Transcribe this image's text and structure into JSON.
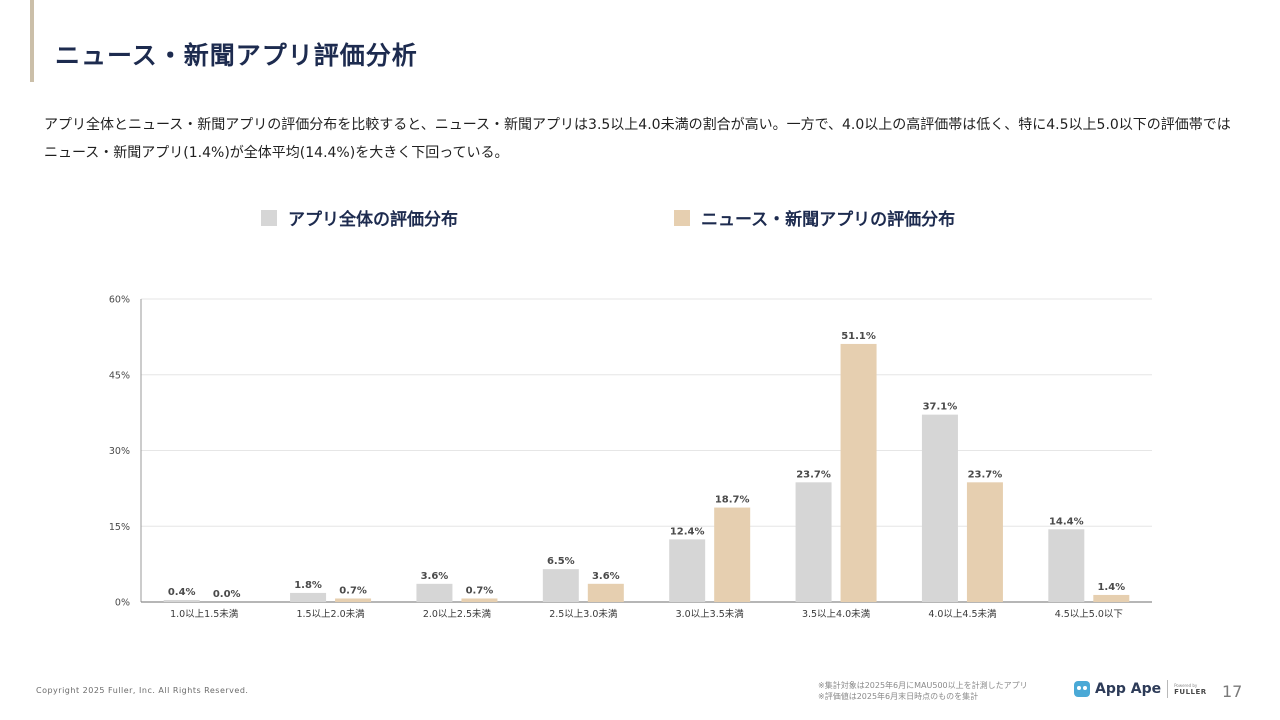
{
  "header": {
    "title": "ニュース・新聞アプリ評価分析",
    "description": "アプリ全体とニュース・新聞アプリの評価分布を比較すると、ニュース・新聞アプリは3.5以上4.0未満の割合が高い。一方で、4.0以上の高評価帯は低く、特に4.5以上5.0以下の評価帯ではニュース・新聞アプリ(1.4%)が全体平均(14.4%)を大きく下回っている。"
  },
  "colors": {
    "all_apps": "#d6d6d6",
    "news_apps": "#e6cfb0",
    "accent": "#cbbfa9",
    "title": "#1d2b4f"
  },
  "chart_data": {
    "type": "bar",
    "categories": [
      "1.0以上1.5未満",
      "1.5以上2.0未満",
      "2.0以上2.5未満",
      "2.5以上3.0未満",
      "3.0以上3.5未満",
      "3.5以上4.0未満",
      "4.0以上4.5未満",
      "4.5以上5.0以下"
    ],
    "series": [
      {
        "name": "アプリ全体の評価分布",
        "values": [
          0.4,
          1.8,
          3.6,
          6.5,
          12.4,
          23.7,
          37.1,
          14.4
        ],
        "labels": [
          "0.4%",
          "1.8%",
          "3.6%",
          "6.5%",
          "12.4%",
          "23.7%",
          "37.1%",
          "14.4%"
        ]
      },
      {
        "name": "ニュース・新聞アプリの評価分布",
        "values": [
          0.0,
          0.7,
          0.7,
          3.6,
          18.7,
          51.1,
          23.7,
          1.4
        ],
        "labels": [
          "0.0%",
          "0.7%",
          "0.7%",
          "3.6%",
          "18.7%",
          "51.1%",
          "23.7%",
          "1.4%"
        ]
      }
    ],
    "ylim": [
      0,
      60
    ],
    "yticks": [
      0,
      15,
      30,
      45,
      60
    ],
    "ytick_labels": [
      "0%",
      "15%",
      "30%",
      "45%",
      "60%"
    ],
    "grid": true,
    "legend_position": "top"
  },
  "footer": {
    "copyright": "Copyright 2025 Fuller, Inc. All Rights Reserved.",
    "note1": "※集計対象は2025年6月にMAU500以上を計測したアプリ",
    "note2": "※評価値は2025年6月末日時点のものを集計",
    "brand_name": "App Ape",
    "powered_by": "Powered by",
    "company": "FULLER",
    "page_number": "17"
  }
}
